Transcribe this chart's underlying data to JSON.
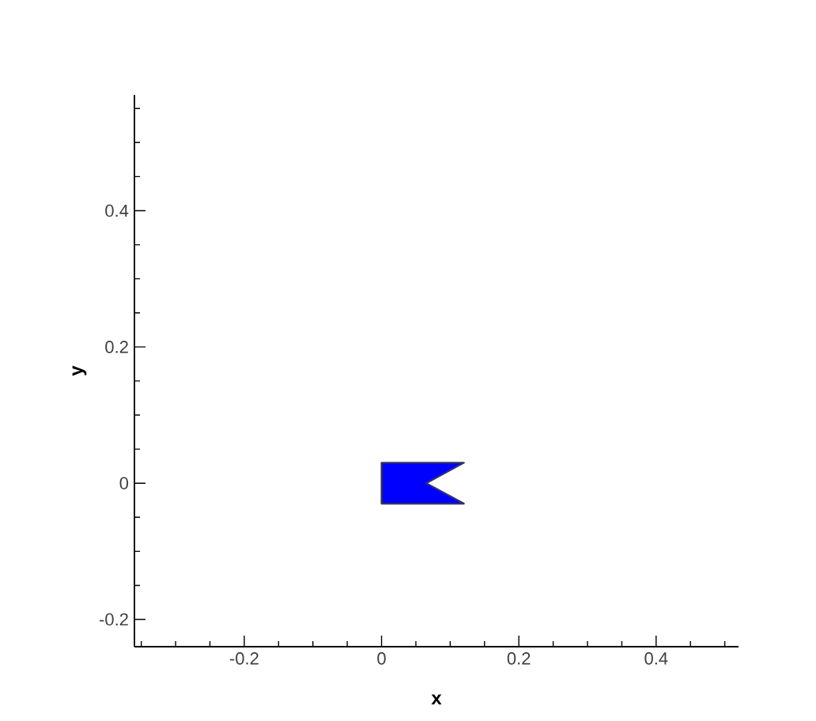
{
  "chart_data": {
    "type": "area",
    "xlabel": "x",
    "ylabel": "y",
    "xlim": [
      -0.36,
      0.52
    ],
    "ylim": [
      -0.24,
      0.57
    ],
    "xticks": [
      {
        "value": -0.35,
        "label": null
      },
      {
        "value": -0.3,
        "label": null
      },
      {
        "value": -0.25,
        "label": null
      },
      -0.2,
      {
        "value": -0.15,
        "label": null
      },
      {
        "value": -0.1,
        "label": null
      },
      {
        "value": -0.05,
        "label": null
      },
      0,
      {
        "value": 0.05,
        "label": null
      },
      {
        "value": 0.1,
        "label": null
      },
      {
        "value": 0.15,
        "label": null
      },
      0.2,
      {
        "value": 0.25,
        "label": null
      },
      {
        "value": 0.3,
        "label": null
      },
      {
        "value": 0.35,
        "label": null
      },
      0.4,
      {
        "value": 0.45,
        "label": null
      },
      {
        "value": 0.5,
        "label": null
      }
    ],
    "yticks": [
      -0.2,
      {
        "value": -0.15,
        "label": null
      },
      {
        "value": -0.1,
        "label": null
      },
      {
        "value": -0.05,
        "label": null
      },
      0,
      {
        "value": 0.05,
        "label": null
      },
      {
        "value": 0.1,
        "label": null
      },
      {
        "value": 0.15,
        "label": null
      },
      0.2,
      {
        "value": 0.25,
        "label": null
      },
      {
        "value": 0.3,
        "label": null
      },
      {
        "value": 0.35,
        "label": null
      },
      0.4,
      {
        "value": 0.45,
        "label": null
      },
      {
        "value": 0.5,
        "label": null
      },
      {
        "value": 0.55,
        "label": null
      }
    ],
    "series": [
      {
        "color": "#0000ff",
        "x": [
          0,
          0.12,
          0.065,
          0.12,
          0
        ],
        "values": [
          -0.03,
          -0.03,
          0,
          0.03,
          0.03
        ]
      }
    ]
  }
}
